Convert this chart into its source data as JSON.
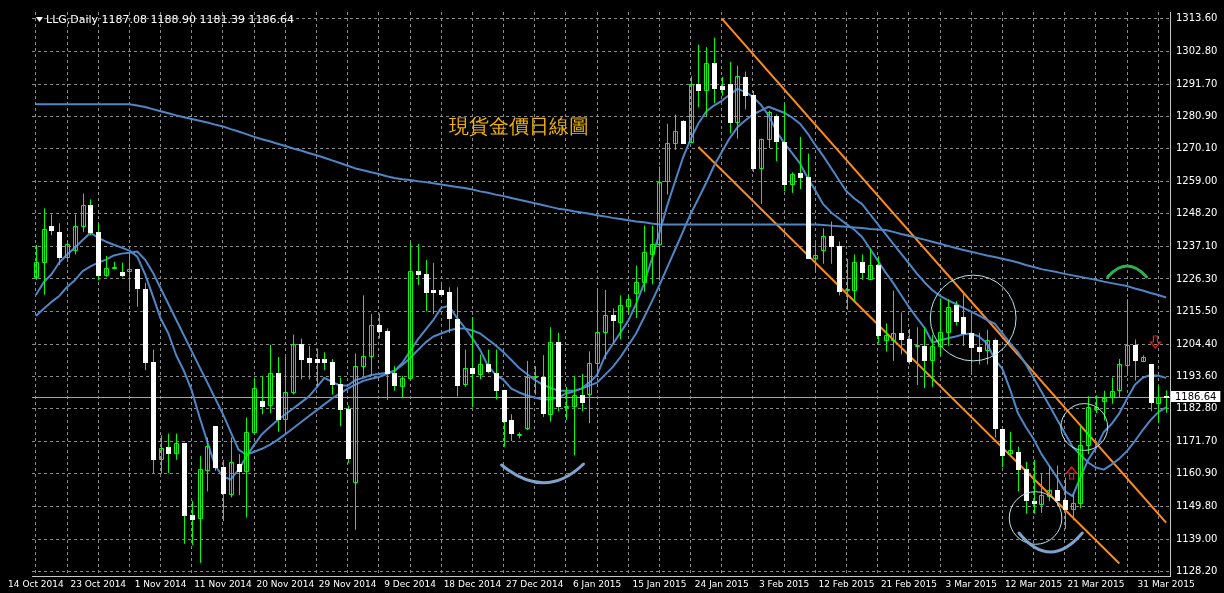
{
  "chart_data": {
    "type": "candlestick",
    "title": "LLG,Daily 1187.08 1188.90 1181.39 1186.64",
    "subtitle": "現貨金價日線圖",
    "categories": [
      "14 Oct 2014",
      null,
      null,
      null,
      null,
      null,
      null,
      null,
      "23 Oct 2014",
      null,
      null,
      null,
      null,
      null,
      null,
      null,
      "1 Nov 2014",
      null,
      null,
      null,
      null,
      null,
      null,
      null,
      "11 Nov 2014",
      null,
      null,
      null,
      null,
      null,
      null,
      null,
      "20 Nov 2014",
      null,
      null,
      null,
      null,
      null,
      null,
      null,
      "29 Nov 2014",
      null,
      null,
      null,
      null,
      null,
      null,
      null,
      "9 Dec 2014",
      null,
      null,
      null,
      null,
      null,
      null,
      null,
      "18 Dec 2014",
      null,
      null,
      null,
      null,
      null,
      null,
      null,
      "27 Dec 2014",
      null,
      null,
      null,
      null,
      null,
      null,
      null,
      "6 Jan 2015",
      null,
      null,
      null,
      null,
      null,
      null,
      null,
      "15 Jan 2015",
      null,
      null,
      null,
      null,
      null,
      null,
      null,
      "24 Jan 2015",
      null,
      null,
      null,
      null,
      null,
      null,
      null,
      "3 Feb 2015",
      null,
      null,
      null,
      null,
      null,
      null,
      null,
      "12 Feb 2015",
      null,
      null,
      null,
      null,
      null,
      null,
      null,
      "21 Feb 2015",
      null,
      null,
      null,
      null,
      null,
      null,
      null,
      "3 Mar 2015",
      null,
      null,
      null,
      null,
      null,
      null,
      null,
      "12 Mar 2015",
      null,
      null,
      null,
      null,
      null,
      null,
      null,
      "21 Mar 2015",
      null,
      null,
      null,
      null,
      null,
      null,
      null,
      null,
      "31 Mar 2015"
    ],
    "series": [
      {
        "type": "line",
        "color": "#4f86c6",
        "values": [
          1284.9,
          1284.9,
          1284.9,
          1284.9,
          1284.9,
          1284.9,
          1284.9,
          1284.9,
          1284.9,
          1284.9,
          1284.9,
          1284.9,
          1284.9,
          1284.5,
          1284.0,
          1283.3,
          1282.6,
          1281.9,
          1281.2,
          1280.6,
          1280.0,
          1279.4,
          1278.8,
          1278.1,
          1277.5,
          1276.6,
          1275.8,
          1274.9,
          1274.0,
          1273.2,
          1272.5,
          1271.7,
          1270.9,
          1270.1,
          1269.4,
          1268.6,
          1267.8,
          1267.0,
          1266.1,
          1265.2,
          1264.3,
          1263.4,
          1262.8,
          1262.1,
          1261.5,
          1260.8,
          1260.2,
          1259.8,
          1259.5,
          1259.1,
          1258.8,
          1258.4,
          1258.0,
          1257.6,
          1257.2,
          1256.8,
          1256.3,
          1255.7,
          1255.2,
          1254.6,
          1254.1,
          1253.5,
          1252.9,
          1252.3,
          1251.7,
          1251.1,
          1250.5,
          1249.9,
          1249.5,
          1249.0,
          1248.6,
          1248.2,
          1247.7,
          1247.3,
          1246.8,
          1246.4,
          1246.0,
          1245.6,
          1245.3,
          1244.9,
          1244.6,
          1244.6,
          1244.6,
          1244.6,
          1244.6,
          1244.6,
          1244.6,
          1244.6,
          1244.6,
          1244.6,
          1244.6,
          1244.6,
          1244.6,
          1244.6,
          1244.6,
          1244.6,
          1244.6,
          1244.6,
          1244.6,
          1244.6,
          1244.6,
          1244.4,
          1244.2,
          1244.0,
          1243.8,
          1243.6,
          1243.4,
          1243.1,
          1242.9,
          1242.7,
          1242.1,
          1241.4,
          1240.8,
          1240.1,
          1239.5,
          1238.8,
          1238.1,
          1237.4,
          1236.7,
          1236.0,
          1235.4,
          1234.8,
          1234.2,
          1233.7,
          1233.1,
          1232.5,
          1231.8,
          1231.0,
          1230.3,
          1229.6,
          1229.1,
          1228.6,
          1228.0,
          1227.5,
          1227.0,
          1226.5,
          1226.0,
          1225.4,
          1224.9,
          1224.4,
          1223.9,
          1223.1,
          1222.4,
          1221.6,
          1220.9,
          1220.1
        ]
      },
      {
        "type": "line",
        "color": "#4f86c6",
        "values": [
          1220.9,
          1225.2,
          1227.9,
          1231.8,
          1234.5,
          1236.8,
          1239.4,
          1241.8,
          1240.1,
          1238.8,
          1237.8,
          1236.8,
          1235.8,
          1233.8,
          1227.9,
          1220.6,
          1213.0,
          1208.0,
          1200.7,
          1195.4,
          1188.8,
          1179.9,
          1171.6,
          1163.6,
          1160.0,
          1159.0,
          1162.3,
          1166.6,
          1170.6,
          1174.2,
          1176.6,
          1178.9,
          1180.9,
          1182.8,
          1184.8,
          1186.8,
          1189.8,
          1193.1,
          1191.8,
          1190.5,
          1190.5,
          1192.4,
          1193.1,
          1194.1,
          1194.4,
          1194.8,
          1195.4,
          1198.1,
          1202.0,
          1206.0,
          1209.3,
          1212.6,
          1216.6,
          1217.3,
          1213.3,
          1210.0,
          1206.4,
          1202.4,
          1197.1,
          1194.1,
          1192.4,
          1189.5,
          1188.2,
          1187.2,
          1186.5,
          1185.8,
          1185.8,
          1186.5,
          1187.8,
          1188.5,
          1189.5,
          1191.5,
          1194.1,
          1200.4,
          1204.4,
          1208.3,
          1212.3,
          1217.9,
          1224.6,
          1232.8,
          1241.8,
          1251.0,
          1259.0,
          1266.9,
          1273.2,
          1278.5,
          1282.5,
          1284.5,
          1286.1,
          1288.1,
          1290.1,
          1289.1,
          1287.4,
          1284.8,
          1281.2,
          1275.9,
          1271.9,
          1268.6,
          1265.2,
          1260.3,
          1256.0,
          1251.4,
          1248.7,
          1246.7,
          1244.7,
          1242.8,
          1240.4,
          1236.5,
          1232.5,
          1228.5,
          1224.9,
          1220.9,
          1216.9,
          1213.3,
          1210.0,
          1205.0,
          1205.7,
          1206.4,
          1207.0,
          1207.7,
          1208.0,
          1207.0,
          1204.7,
          1199.4,
          1196.1,
          1189.1,
          1181.2,
          1176.6,
          1172.6,
          1167.6,
          1163.6,
          1159.7,
          1155.1,
          1153.4,
          1159.7,
          1165.6,
          1169.6,
          1174.9,
          1177.6,
          1181.2,
          1186.2,
          1190.8,
          1193.1,
          1194.1,
          1193.8,
          1193.1
        ]
      },
      {
        "type": "line",
        "color": "#4f86c6",
        "values": [
          1213.9,
          1216.3,
          1218.6,
          1220.6,
          1223.6,
          1225.9,
          1228.9,
          1230.5,
          1231.8,
          1232.8,
          1234.2,
          1234.8,
          1235.1,
          1235.5,
          1232.8,
          1228.5,
          1223.2,
          1217.9,
          1212.6,
          1207.3,
          1202.0,
          1196.7,
          1191.5,
          1186.2,
          1180.9,
          1174.9,
          1169.0,
          1167.3,
          1168.3,
          1169.3,
          1170.6,
          1172.3,
          1174.2,
          1176.2,
          1178.2,
          1180.2,
          1182.2,
          1184.2,
          1186.2,
          1187.8,
          1189.5,
          1190.8,
          1192.1,
          1192.8,
          1193.4,
          1194.4,
          1195.4,
          1197.4,
          1199.7,
          1202.4,
          1205.0,
          1207.0,
          1208.0,
          1209.0,
          1209.7,
          1209.7,
          1209.0,
          1208.0,
          1206.0,
          1204.0,
          1201.7,
          1199.1,
          1196.4,
          1194.4,
          1192.4,
          1190.8,
          1189.8,
          1188.8,
          1188.8,
          1188.8,
          1189.5,
          1190.5,
          1191.5,
          1194.1,
          1196.7,
          1200.1,
          1204.0,
          1208.0,
          1213.3,
          1218.6,
          1224.2,
          1230.2,
          1236.1,
          1242.1,
          1248.1,
          1253.3,
          1258.6,
          1264.3,
          1268.9,
          1273.5,
          1277.2,
          1279.5,
          1281.5,
          1282.8,
          1284.1,
          1283.1,
          1282.1,
          1280.5,
          1278.5,
          1275.2,
          1271.2,
          1267.6,
          1263.6,
          1259.6,
          1255.7,
          1253.3,
          1251.4,
          1248.1,
          1244.7,
          1241.4,
          1238.1,
          1234.8,
          1231.5,
          1228.2,
          1225.2,
          1222.6,
          1220.6,
          1219.2,
          1217.9,
          1216.6,
          1215.3,
          1214.0,
          1212.6,
          1211.3,
          1208.0,
          1204.7,
          1201.7,
          1197.7,
          1193.1,
          1188.5,
          1183.9,
          1179.2,
          1174.6,
          1170.0,
          1167.3,
          1164.7,
          1163.0,
          1162.3,
          1164.0,
          1166.0,
          1168.6,
          1171.9,
          1175.6,
          1178.9,
          1181.6,
          1183.2
        ]
      },
      {
        "type": "line",
        "color": "#ff8c1a",
        "values": [
          null,
          null,
          null,
          null,
          null,
          null,
          null,
          null,
          null,
          null,
          null,
          null,
          null,
          null,
          null,
          null,
          null,
          null,
          null,
          null,
          null,
          null,
          null,
          null,
          null,
          null,
          null,
          null,
          null,
          null,
          null,
          null,
          null,
          null,
          null,
          null,
          null,
          null,
          null,
          null,
          null,
          null,
          null,
          null,
          null,
          null,
          null,
          null,
          null,
          null,
          null,
          null,
          null,
          null,
          null,
          null,
          null,
          null,
          null,
          null,
          null,
          null,
          null,
          null,
          null,
          null,
          null,
          null,
          null,
          null,
          null,
          null,
          null,
          null,
          null,
          null,
          null,
          null,
          null,
          null,
          null,
          null,
          null,
          null,
          null,
          null,
          null,
          null,
          1313.7,
          null,
          null,
          null,
          null,
          null,
          null,
          null,
          null,
          null,
          null,
          null,
          null,
          null,
          null,
          null,
          null,
          null,
          null,
          null,
          null,
          null,
          null,
          null,
          null,
          null,
          null,
          null,
          null,
          null,
          null,
          null,
          null,
          null,
          null,
          null,
          null,
          null,
          null,
          null,
          null,
          null,
          null,
          null,
          null,
          null,
          null,
          null,
          null,
          null,
          null,
          null,
          null,
          null,
          null,
          null,
          null,
          1144.5
        ]
      },
      {
        "type": "line",
        "color": "#ff8c1a",
        "values": [
          null,
          null,
          null,
          null,
          null,
          null,
          null,
          null,
          null,
          null,
          null,
          null,
          null,
          null,
          null,
          null,
          null,
          null,
          null,
          null,
          null,
          null,
          null,
          null,
          null,
          null,
          null,
          null,
          null,
          null,
          null,
          null,
          null,
          null,
          null,
          null,
          null,
          null,
          null,
          null,
          null,
          null,
          null,
          null,
          null,
          null,
          null,
          null,
          null,
          null,
          null,
          null,
          null,
          null,
          null,
          null,
          null,
          null,
          null,
          null,
          null,
          null,
          null,
          null,
          null,
          null,
          null,
          null,
          null,
          null,
          null,
          null,
          null,
          null,
          null,
          null,
          null,
          null,
          null,
          null,
          null,
          null,
          null,
          null,
          null,
          1270.6,
          null,
          null,
          null,
          null,
          null,
          null,
          null,
          null,
          null,
          null,
          null,
          null,
          null,
          null,
          null,
          null,
          null,
          null,
          null,
          null,
          null,
          null,
          null,
          null,
          null,
          null,
          null,
          null,
          null,
          null,
          null,
          null,
          null,
          null,
          null,
          null,
          null,
          null,
          null,
          null,
          null,
          null,
          null,
          null,
          null,
          null,
          null,
          null,
          null,
          null,
          null,
          null,
          null,
          1130.8,
          null,
          null,
          null,
          null,
          null,
          null
        ]
      },
      {
        "type": "candlestick",
        "color": "#00ff00",
        "colors": [
          "#00ff00",
          "#00ff00",
          "#ffffff",
          "#ffffff",
          "#00ff00",
          "#00ff00",
          "#00ff00",
          "#ffffff",
          "#ffffff",
          "#00ff00",
          "#00ff00",
          "#ffffff",
          "#00ff00",
          "#ffffff",
          "#ffffff",
          "#ffffff",
          "#00ff00",
          "#ffffff",
          "#00ff00",
          "#ffffff",
          "#ffffff",
          "#00ff00",
          "#00ff00",
          "#ffffff",
          "#ffffff",
          "#00ff00",
          "#ffffff",
          "#00ff00",
          "#00ff00",
          "#ffffff",
          "#00ff00",
          "#ffffff",
          "#00ff00",
          "#00ff00",
          "#ffffff",
          "#ffffff",
          "#ffffff",
          "#ffffff",
          "#ffffff",
          "#ffffff",
          "#ffffff",
          "#00ff00",
          "#00ff00",
          "#00ff00",
          "#ffffff",
          "#ffffff",
          "#ffffff",
          "#00ff00",
          "#00ff00",
          "#ffffff",
          "#ffffff",
          "#ffffff",
          "#ffffff",
          "#ffffff",
          "#ffffff",
          "#00ff00",
          "#ffffff",
          "#00ff00",
          "#ffffff",
          "#ffffff",
          "#ffffff",
          "#ffffff",
          "#00ff00",
          "#00ff00",
          "#00ff00",
          "#ffffff",
          "#00ff00",
          "#ffffff",
          "#00ff00",
          "#00ff00",
          "#ffffff",
          "#00ff00",
          "#00ff00",
          "#00ff00",
          "#ffffff",
          "#00ff00",
          "#00ff00",
          "#00ff00",
          "#00ff00",
          "#00ff00",
          "#00ff00",
          "#00ff00",
          "#00ff00",
          "#ffffff",
          "#00ff00",
          "#ffffff",
          "#00ff00",
          "#ffffff",
          "#ffffff",
          "#ffffff",
          "#00ff00",
          "#ffffff",
          "#ffffff",
          "#00ff00",
          "#00ff00",
          "#ffffff",
          "#ffffff",
          "#00ff00",
          "#ffffff",
          "#ffffff",
          "#00ff00",
          "#00ff00",
          "#ffffff",
          "#ffffff",
          "#00ff00",
          "#00ff00",
          "#ffffff",
          "#00ff00",
          "#ffffff",
          "#00ff00",
          "#00ff00",
          "#ffffff",
          "#ffffff",
          "#00ff00",
          "#ffffff",
          "#00ff00",
          "#00ff00",
          "#00ff00",
          "#ffffff",
          "#ffffff",
          "#ffffff",
          "#ffffff",
          "#00ff00",
          "#ffffff",
          "#ffffff",
          "#00ff00",
          "#ffffff",
          "#ffffff",
          "#ffffff",
          "#00ff00",
          "#00ff00",
          "#ffffff",
          "#ffffff",
          "#00ff00",
          "#00ff00",
          "#00ff00",
          "#00ff00",
          "#00ff00",
          "#00ff00",
          "#00ff00",
          "#00ff00",
          "#ffffff",
          "#00ff00",
          "#ffffff",
          "#00ff00",
          "#ffffff"
        ],
        "ohlc": [
          [
            1227,
            1237.7,
            1226,
            1232
          ],
          [
            1232,
            1250,
            1221,
            1243
          ],
          [
            1244,
            1248,
            1241,
            1242.5
          ],
          [
            1242,
            1245,
            1231,
            1233.5
          ],
          [
            1233.5,
            1239,
            1232,
            1238
          ],
          [
            1236,
            1248,
            1234.5,
            1244
          ],
          [
            1244,
            1255,
            1242,
            1251
          ],
          [
            1251,
            1253,
            1241,
            1242
          ],
          [
            1242,
            1245,
            1225.8,
            1227.6
          ],
          [
            1227.6,
            1234,
            1227,
            1230
          ],
          [
            1230.2,
            1232,
            1229.5,
            1230.4
          ],
          [
            1228.8,
            1231.8,
            1227,
            1227.8
          ],
          [
            1228.8,
            1234.9,
            1222,
            1229.5
          ],
          [
            1229.5,
            1229.5,
            1217,
            1223
          ],
          [
            1223,
            1225,
            1195.7,
            1198.5
          ],
          [
            1198.5,
            1202.6,
            1160.9,
            1165.9
          ],
          [
            1165.6,
            1173.8,
            1160.9,
            1169.4
          ],
          [
            1170,
            1174.4,
            1161.2,
            1167.9
          ],
          [
            1167.9,
            1174.4,
            1165.6,
            1171.2
          ],
          [
            1171.2,
            1171.2,
            1137.4,
            1147.2
          ],
          [
            1147.2,
            1151.8,
            1137,
            1146
          ],
          [
            1146,
            1166.9,
            1131,
            1162.4
          ],
          [
            1162.4,
            1173.1,
            1155,
            1170.4
          ],
          [
            1176.9,
            1176.9,
            1161.9,
            1163.1
          ],
          [
            1163.1,
            1165.6,
            1145,
            1154.3
          ],
          [
            1154,
            1173.1,
            1153,
            1164.7
          ],
          [
            1164.3,
            1167.5,
            1153.7,
            1161.9
          ],
          [
            1161.6,
            1179.8,
            1146.2,
            1174.8
          ],
          [
            1175,
            1193.2,
            1175,
            1189.7
          ],
          [
            1185.4,
            1193.8,
            1180.9,
            1183.8
          ],
          [
            1183.8,
            1204.2,
            1181.3,
            1194.7
          ],
          [
            1194.7,
            1200.1,
            1175,
            1179.4
          ],
          [
            1179.4,
            1200.1,
            1175,
            1188.4
          ],
          [
            1188.4,
            1207.6,
            1187.5,
            1204.5
          ],
          [
            1204.5,
            1206.3,
            1192.6,
            1199.4
          ],
          [
            1199.8,
            1203.8,
            1192.6,
            1198.4
          ],
          [
            1199.4,
            1202.9,
            1190.1,
            1198.4
          ],
          [
            1199.4,
            1201.7,
            1195.7,
            1198.4
          ],
          [
            1198.4,
            1199.4,
            1187.5,
            1190.9
          ],
          [
            1190.9,
            1193.2,
            1176.9,
            1182.5
          ],
          [
            1182.8,
            1183.8,
            1164.6,
            1166.5
          ],
          [
            1158.4,
            1201.3,
            1142.1,
            1197.2
          ],
          [
            1197.2,
            1220.8,
            1193.8,
            1200.5
          ],
          [
            1200.5,
            1214.5,
            1193.8,
            1211
          ],
          [
            1211,
            1214.7,
            1206.3,
            1208.9
          ],
          [
            1208.9,
            1209.7,
            1185.7,
            1194.7
          ],
          [
            1194.7,
            1197,
            1188.8,
            1190.7
          ],
          [
            1190.1,
            1193.8,
            1186.3,
            1192.9
          ],
          [
            1192.9,
            1238.5,
            1192.9,
            1228.9
          ],
          [
            1229.1,
            1238,
            1224.3,
            1228
          ],
          [
            1228,
            1232.7,
            1215.5,
            1222
          ],
          [
            1222.6,
            1231.7,
            1214.5,
            1221.8
          ],
          [
            1222.6,
            1225.1,
            1220.8,
            1221.3
          ],
          [
            1221.8,
            1223.5,
            1208.2,
            1213
          ],
          [
            1212.9,
            1223.5,
            1186.9,
            1190.9
          ],
          [
            1190.9,
            1202.6,
            1190.1,
            1196.3
          ],
          [
            1196.3,
            1213.5,
            1183.2,
            1194.7
          ],
          [
            1194.7,
            1200.9,
            1192.6,
            1197.9
          ],
          [
            1197.9,
            1202.6,
            1194.7,
            1195.7
          ],
          [
            1194.7,
            1202.6,
            1185.9,
            1189.1
          ],
          [
            1189.1,
            1189.1,
            1170,
            1178.8
          ],
          [
            1178.8,
            1180.9,
            1171.9,
            1174.4
          ],
          [
            1174.2,
            1174.8,
            1172.8,
            1174.4
          ],
          [
            1176.3,
            1198.8,
            1175.6,
            1193.4
          ],
          [
            1193.2,
            1197,
            1187.5,
            1193.6
          ],
          [
            1193.4,
            1200.7,
            1180,
            1181.3
          ],
          [
            1181.3,
            1210.1,
            1178.4,
            1205.3
          ],
          [
            1205.3,
            1208.2,
            1181.9,
            1183.8
          ],
          [
            1183.4,
            1190.1,
            1179,
            1183.6
          ],
          [
            1183.8,
            1193.8,
            1167.1,
            1187.5
          ],
          [
            1187.5,
            1194.4,
            1181.9,
            1185
          ],
          [
            1187.9,
            1202,
            1177.9,
            1198.2
          ],
          [
            1198.2,
            1222.6,
            1193.8,
            1208.5
          ],
          [
            1208.5,
            1222.6,
            1199.4,
            1214.2
          ],
          [
            1214.2,
            1216.4,
            1204.5,
            1212.4
          ],
          [
            1212,
            1220.8,
            1206,
            1217.6
          ],
          [
            1217.2,
            1221,
            1214.5,
            1219.5
          ],
          [
            1221.8,
            1230.8,
            1213.2,
            1225.4
          ],
          [
            1225.1,
            1244.2,
            1222,
            1235.2
          ],
          [
            1234.9,
            1244.2,
            1224.5,
            1238.1
          ],
          [
            1238.1,
            1264,
            1225.8,
            1259
          ],
          [
            1259,
            1278.4,
            1254.6,
            1271.8
          ],
          [
            1272.1,
            1281.5,
            1269.6,
            1276.1
          ],
          [
            1279.4,
            1279.6,
            1271.9,
            1272.1
          ],
          [
            1272.1,
            1294.3,
            1271.9,
            1291.6
          ],
          [
            1291.6,
            1304.9,
            1284,
            1289.7
          ],
          [
            1289.7,
            1304.1,
            1280.9,
            1298.8
          ],
          [
            1298.8,
            1307.2,
            1285.3,
            1290.5
          ],
          [
            1291.2,
            1294.1,
            1287.8,
            1290.2
          ],
          [
            1291.6,
            1299.1,
            1275.2,
            1279
          ],
          [
            1279,
            1297.8,
            1273.4,
            1294.3
          ],
          [
            1294.1,
            1295.9,
            1283.2,
            1288.2
          ],
          [
            1288.2,
            1289.4,
            1262.1,
            1263.6
          ],
          [
            1263.6,
            1273.4,
            1251.5,
            1273.4
          ],
          [
            1273.4,
            1282.8,
            1270.2,
            1282.4
          ],
          [
            1281.1,
            1281.5,
            1265.9,
            1272.8
          ],
          [
            1272.4,
            1285.3,
            1255.8,
            1258.3
          ],
          [
            1258.3,
            1262.1,
            1255.2,
            1261.5
          ],
          [
            1261.9,
            1274,
            1256.5,
            1260.6
          ],
          [
            1260.6,
            1268.4,
            1233.5,
            1233.5
          ],
          [
            1233.5,
            1238.3,
            1228.3,
            1234.5
          ],
          [
            1235.8,
            1243.3,
            1231.4,
            1240.6
          ],
          [
            1240.6,
            1245.6,
            1231.4,
            1237.4
          ],
          [
            1237.4,
            1238.9,
            1220.8,
            1222.4
          ],
          [
            1222.4,
            1233,
            1216,
            1222.8
          ],
          [
            1222.6,
            1234.5,
            1218.9,
            1232
          ],
          [
            1232,
            1234.5,
            1226,
            1228.5
          ],
          [
            1226.4,
            1236.4,
            1225.8,
            1231
          ],
          [
            1231,
            1233.9,
            1204.7,
            1207.6
          ],
          [
            1206,
            1211.4,
            1201.9,
            1207.6
          ],
          [
            1206,
            1222.4,
            1198.8,
            1208.2
          ],
          [
            1208.2,
            1215.1,
            1201,
            1206.3
          ],
          [
            1206.3,
            1209.5,
            1197.6,
            1198.8
          ],
          [
            1203.9,
            1210.1,
            1190.7,
            1204.1
          ],
          [
            1203.9,
            1210.1,
            1189.7,
            1199.2
          ],
          [
            1199.2,
            1207.6,
            1190.1,
            1203.9
          ],
          [
            1203.9,
            1219.8,
            1200.5,
            1208.5
          ],
          [
            1208.5,
            1219.5,
            1203.9,
            1217
          ],
          [
            1217.6,
            1218.9,
            1210.7,
            1212.2
          ],
          [
            1213.5,
            1221.4,
            1203.8,
            1208.2
          ],
          [
            1208.2,
            1214.5,
            1195.1,
            1203.5
          ],
          [
            1203.5,
            1208.2,
            1197.6,
            1202.2
          ],
          [
            1202.2,
            1209.2,
            1197.6,
            1205.7
          ],
          [
            1205.7,
            1206.3,
            1173.1,
            1176.3
          ],
          [
            1175.9,
            1175.9,
            1163.1,
            1167.1
          ],
          [
            1167.9,
            1175,
            1166.9,
            1168.8
          ],
          [
            1168.1,
            1170,
            1155,
            1162.4
          ],
          [
            1162.4,
            1164.9,
            1147.5,
            1152.1
          ],
          [
            1151.8,
            1165.6,
            1147.5,
            1151
          ],
          [
            1150.6,
            1161.2,
            1147.8,
            1153.7
          ],
          [
            1153.5,
            1163.7,
            1151.8,
            1155.5
          ],
          [
            1155.3,
            1163.7,
            1150,
            1152.1
          ],
          [
            1152.1,
            1159.6,
            1142.4,
            1149.1
          ],
          [
            1149.1,
            1154.3,
            1145.3,
            1151.2
          ],
          [
            1151.2,
            1176.9,
            1149.3,
            1170.6
          ],
          [
            1170.6,
            1186.9,
            1167.5,
            1183.2
          ],
          [
            1182.6,
            1187.2,
            1181.3,
            1183.2
          ],
          [
            1185.4,
            1188.8,
            1178.8,
            1186.5
          ],
          [
            1186.9,
            1193.2,
            1184.4,
            1188.8
          ],
          [
            1188.8,
            1199.4,
            1186.3,
            1197.6
          ],
          [
            1197.6,
            1219.5,
            1193.8,
            1204.2
          ],
          [
            1204.2,
            1206,
            1192.2,
            1199.2
          ],
          [
            1198.8,
            1200.7,
            1198.4,
            1200.1
          ],
          [
            1197.6,
            1197.6,
            1181.9,
            1185
          ],
          [
            1184.7,
            1190.7,
            1178.1,
            1186.7
          ],
          [
            1187.08,
            1188.9,
            1181.39,
            1186.64
          ]
        ]
      }
    ],
    "ylim": [
      1126.6,
      1315.9
    ],
    "yticks": [
      {
        "value": 1128.2,
        "label": "1128.20"
      },
      {
        "value": 1139,
        "label": "1139.00"
      },
      {
        "value": 1149.8,
        "label": "1149.80"
      },
      {
        "value": 1160.9,
        "label": "1160.90"
      },
      {
        "value": 1171.7,
        "label": "1171.70"
      },
      {
        "value": 1182.8,
        "label": "1182.80"
      },
      {
        "value": 1193.6,
        "label": "1193.60"
      },
      {
        "value": 1204.4,
        "label": "1204.40"
      },
      {
        "value": 1215.5,
        "label": "1215.50"
      },
      {
        "value": 1226.3,
        "label": "1226.30"
      },
      {
        "value": 1237.1,
        "label": "1237.10"
      },
      {
        "value": 1248.2,
        "label": "1248.20"
      },
      {
        "value": 1259,
        "label": "1259.00"
      },
      {
        "value": 1270.1,
        "label": "1270.10"
      },
      {
        "value": 1280.9,
        "label": "1280.90"
      },
      {
        "value": 1291.7,
        "label": "1291.70"
      },
      {
        "value": 1302.8,
        "label": "1302.80"
      },
      {
        "value": 1313.6,
        "label": "1313.60"
      }
    ],
    "grid": true,
    "ref_lines": [
      {
        "axis": "y",
        "value": 1186.64,
        "label": "1186.64",
        "color": "#8fa7c4"
      }
    ]
  }
}
